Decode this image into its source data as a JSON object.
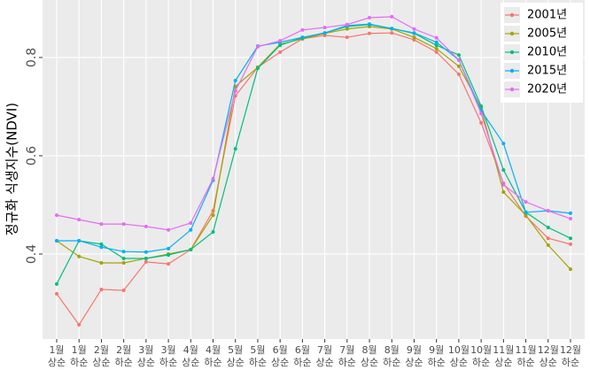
{
  "chart_data": {
    "type": "line",
    "ylabel": "정규화 식생지수(NDVI)",
    "categories": [
      [
        "1월",
        "상순"
      ],
      [
        "1월",
        "하순"
      ],
      [
        "2월",
        "상순"
      ],
      [
        "2월",
        "하순"
      ],
      [
        "3월",
        "상순"
      ],
      [
        "3월",
        "하순"
      ],
      [
        "4월",
        "상순"
      ],
      [
        "4월",
        "하순"
      ],
      [
        "5월",
        "상순"
      ],
      [
        "5월",
        "하순"
      ],
      [
        "6월",
        "상순"
      ],
      [
        "6월",
        "하순"
      ],
      [
        "7월",
        "상순"
      ],
      [
        "7월",
        "하순"
      ],
      [
        "8월",
        "상순"
      ],
      [
        "8월",
        "하순"
      ],
      [
        "9월",
        "상순"
      ],
      [
        "9월",
        "하순"
      ],
      [
        "10월",
        "상순"
      ],
      [
        "10월",
        "하순"
      ],
      [
        "11월",
        "상순"
      ],
      [
        "11월",
        "하순"
      ],
      [
        "12월",
        "상순"
      ],
      [
        "12월",
        "하순"
      ]
    ],
    "series": [
      {
        "name": "2001년",
        "color": "#F8766D",
        "values": [
          0.319,
          0.256,
          0.328,
          0.326,
          0.384,
          0.38,
          0.409,
          0.488,
          0.722,
          0.78,
          0.811,
          0.838,
          0.845,
          0.841,
          0.849,
          0.85,
          0.836,
          0.811,
          0.766,
          0.667,
          0.544,
          0.477,
          0.432,
          0.42
        ]
      },
      {
        "name": "2005년",
        "color": "#A3A500",
        "values": [
          0.427,
          0.395,
          0.382,
          0.382,
          0.391,
          0.4,
          0.409,
          0.479,
          0.741,
          0.78,
          0.827,
          0.838,
          0.849,
          0.858,
          0.863,
          0.858,
          0.841,
          0.818,
          0.782,
          0.697,
          0.526,
          0.479,
          0.418,
          0.369
        ]
      },
      {
        "name": "2010년",
        "color": "#00BF7D",
        "values": [
          0.339,
          0.427,
          0.42,
          0.391,
          0.391,
          0.398,
          0.409,
          0.445,
          0.614,
          0.778,
          0.825,
          0.84,
          0.85,
          0.863,
          0.867,
          0.859,
          0.849,
          0.825,
          0.805,
          0.701,
          0.571,
          0.485,
          0.454,
          0.432
        ]
      },
      {
        "name": "2015년",
        "color": "#00B0F6",
        "values": [
          0.427,
          0.427,
          0.414,
          0.405,
          0.404,
          0.411,
          0.449,
          0.55,
          0.753,
          0.823,
          0.831,
          0.841,
          0.85,
          0.865,
          0.868,
          0.859,
          0.85,
          0.831,
          0.795,
          0.692,
          0.625,
          0.485,
          0.488,
          0.483
        ]
      },
      {
        "name": "2020년",
        "color": "#E76BF3",
        "values": [
          0.479,
          0.47,
          0.461,
          0.461,
          0.456,
          0.449,
          0.463,
          0.553,
          0.732,
          0.822,
          0.834,
          0.856,
          0.861,
          0.867,
          0.881,
          0.883,
          0.858,
          0.84,
          0.795,
          0.686,
          0.541,
          0.506,
          0.488,
          0.472
        ]
      }
    ],
    "ylim": [
      0.227,
      0.917
    ],
    "yticks": [
      0.4,
      0.6,
      0.8
    ],
    "grid": true,
    "legend": "top-right"
  }
}
